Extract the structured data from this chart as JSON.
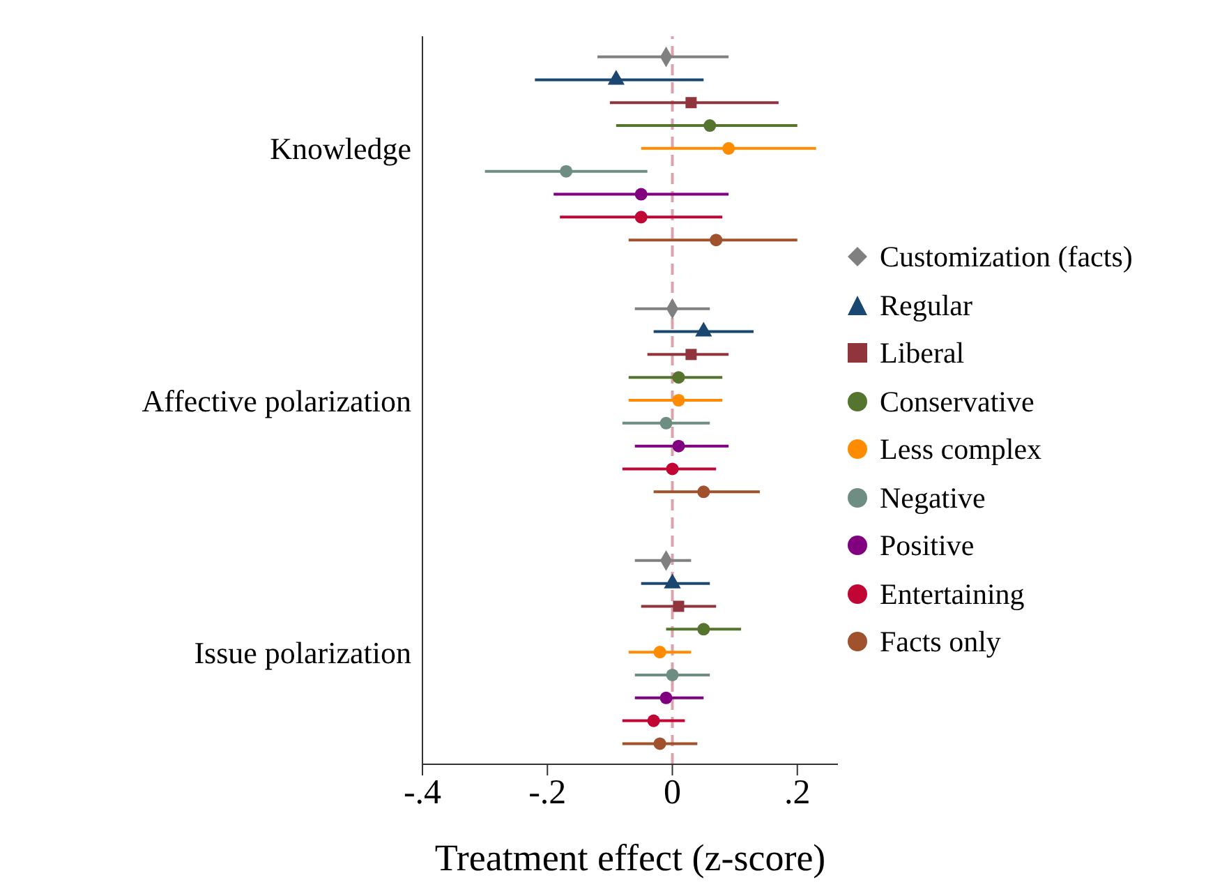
{
  "chart_data": {
    "type": "scatter",
    "orientation": "horizontal",
    "xlabel": "Treatment effect (z-score)",
    "categories": [
      "Knowledge",
      "Affective polarization",
      "Issue polarization"
    ],
    "xlim": [
      -0.4,
      0.265
    ],
    "xticks": [
      {
        "value": -0.4,
        "label": "-.4"
      },
      {
        "value": -0.2,
        "label": "-.2"
      },
      0,
      {
        "value": 0.2,
        "label": ".2"
      }
    ],
    "grid": false,
    "legend": "right",
    "ref_lines": [
      {
        "axis": "x",
        "value": 0,
        "color": "#d9a3ab",
        "line_style": "dashed"
      }
    ],
    "series": [
      {
        "name": "Customization (facts)",
        "color": "#808080",
        "marker": "diamond",
        "values": [
          -0.01,
          0,
          -0.01
        ],
        "errors": [
          [
            -0.12,
            0.09
          ],
          [
            -0.06,
            0.06
          ],
          [
            -0.06,
            0.03
          ]
        ]
      },
      {
        "name": "Regular",
        "color": "#1a476f",
        "marker": "triangle",
        "values": [
          -0.09,
          0.05,
          0
        ],
        "errors": [
          [
            -0.22,
            0.05
          ],
          [
            -0.03,
            0.13
          ],
          [
            -0.05,
            0.06
          ]
        ]
      },
      {
        "name": "Liberal",
        "color": "#90353b",
        "marker": "square",
        "values": [
          0.03,
          0.03,
          0.01
        ],
        "errors": [
          [
            -0.1,
            0.17
          ],
          [
            -0.04,
            0.09
          ],
          [
            -0.05,
            0.07
          ]
        ]
      },
      {
        "name": "Conservative",
        "color": "#55752f",
        "marker": "circle",
        "values": [
          0.06,
          0.01,
          0.05
        ],
        "errors": [
          [
            -0.09,
            0.2
          ],
          [
            -0.07,
            0.08
          ],
          [
            -0.01,
            0.11
          ]
        ]
      },
      {
        "name": "Less complex",
        "color": "#ff8c00",
        "marker": "circle",
        "values": [
          0.09,
          0.01,
          -0.02
        ],
        "errors": [
          [
            -0.05,
            0.23
          ],
          [
            -0.07,
            0.08
          ],
          [
            -0.07,
            0.03
          ]
        ]
      },
      {
        "name": "Negative",
        "color": "#6e8e84",
        "marker": "circle",
        "values": [
          -0.17,
          -0.01,
          0
        ],
        "errors": [
          [
            -0.3,
            -0.04
          ],
          [
            -0.08,
            0.06
          ],
          [
            -0.06,
            0.06
          ]
        ]
      },
      {
        "name": "Positive",
        "color": "#800080",
        "marker": "circle",
        "values": [
          -0.05,
          0.01,
          -0.01
        ],
        "errors": [
          [
            -0.19,
            0.09
          ],
          [
            -0.06,
            0.09
          ],
          [
            -0.06,
            0.05
          ]
        ]
      },
      {
        "name": "Entertaining",
        "color": "#c10534",
        "marker": "circle",
        "values": [
          -0.05,
          0,
          -0.03
        ],
        "errors": [
          [
            -0.18,
            0.08
          ],
          [
            -0.08,
            0.07
          ],
          [
            -0.08,
            0.02
          ]
        ]
      },
      {
        "name": "Facts only",
        "color": "#a0522d",
        "marker": "circle",
        "values": [
          0.07,
          0.05,
          -0.02
        ],
        "errors": [
          [
            -0.07,
            0.2
          ],
          [
            -0.03,
            0.14
          ],
          [
            -0.08,
            0.04
          ]
        ]
      }
    ]
  }
}
